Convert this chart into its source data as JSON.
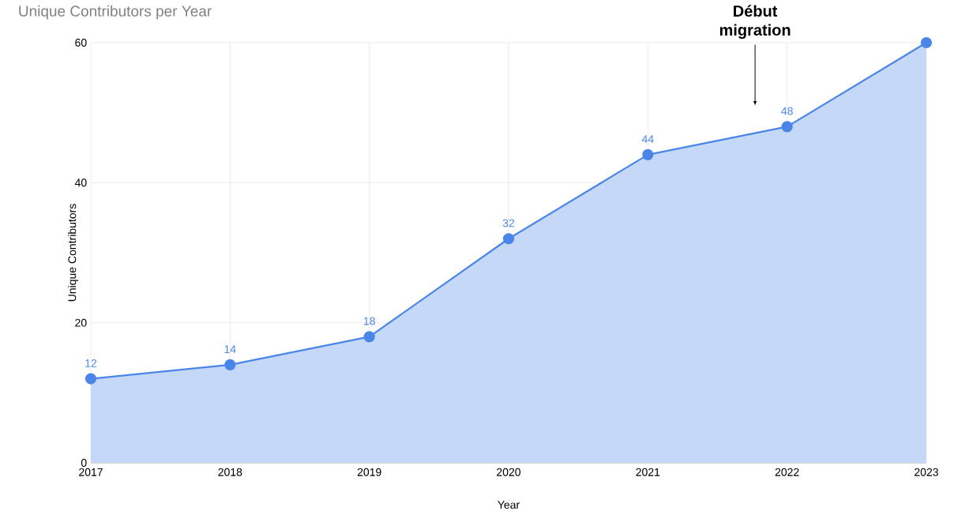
{
  "chart_data": {
    "type": "area",
    "title": "Unique Contributors per Year",
    "xlabel": "Year",
    "ylabel": "Unique Contributors",
    "x": [
      2017,
      2018,
      2019,
      2020,
      2021,
      2022,
      2023
    ],
    "series": [
      {
        "color": "#4a86e8",
        "values": [
          12,
          14,
          18,
          32,
          44,
          48,
          60
        ],
        "value_labels": [
          "12",
          "14",
          "18",
          "32",
          "44",
          "48",
          null
        ]
      }
    ],
    "xlim": [
      2017,
      2023
    ],
    "xticks": [
      2017,
      2018,
      2019,
      2020,
      2021,
      2022,
      2023
    ],
    "ylim": [
      0,
      60
    ],
    "yticks": [
      0,
      20,
      40,
      60
    ],
    "grid": true,
    "marker": "circle",
    "annotations": [
      "**Début migration**"
    ]
  }
}
